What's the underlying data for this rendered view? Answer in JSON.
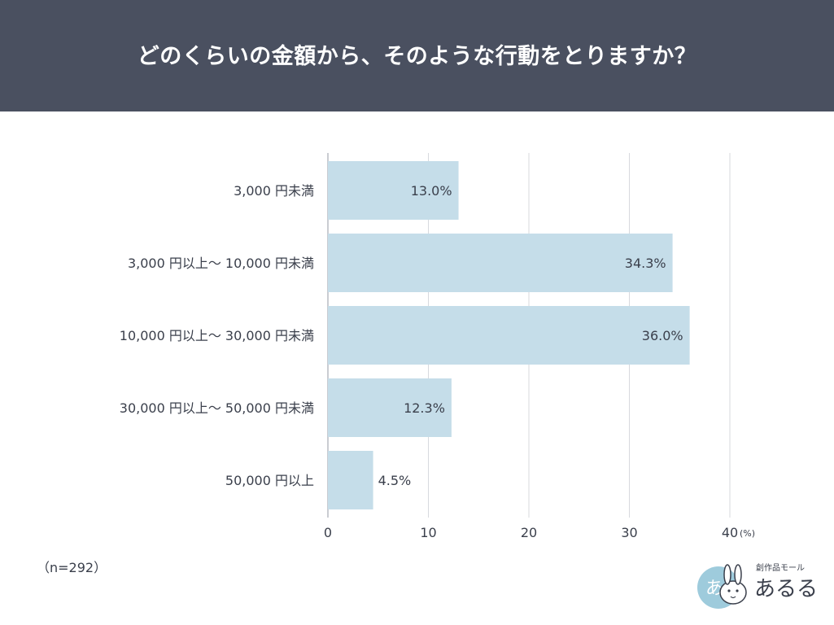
{
  "header": {
    "title": "どのくらいの金額から、そのような行動をとりますか？"
  },
  "chart_data": {
    "type": "bar",
    "orientation": "horizontal",
    "title": "どのくらいの金額から、そのような行動をとりますか？",
    "categories": [
      "3,000 円未満",
      "3,000 円以上〜 10,000 円未満",
      "10,000 円以上〜 30,000 円未満",
      "30,000 円以上〜 50,000 円未満",
      "50,000 円以上"
    ],
    "values": [
      13.0,
      34.3,
      36.0,
      12.3,
      4.5
    ],
    "value_labels": [
      "13.0%",
      "34.3%",
      "36.0%",
      "12.3%",
      "4.5%"
    ],
    "x_ticks": [
      "0",
      "10",
      "20",
      "30",
      "40"
    ],
    "x_unit": "(%)",
    "xlim": [
      0,
      40
    ],
    "grid": true,
    "bar_color": "#c5dde9"
  },
  "note": "（n=292）",
  "logo": {
    "icon_name": "rabbit-logo-icon",
    "caption": "創作品モール",
    "name": "あるる",
    "icon_text": "あ"
  },
  "colors": {
    "header_bg": "#4a5060",
    "text": "#3a3f4b",
    "grid": "#d7d9de",
    "logo_circle": "#9ecbdc"
  }
}
